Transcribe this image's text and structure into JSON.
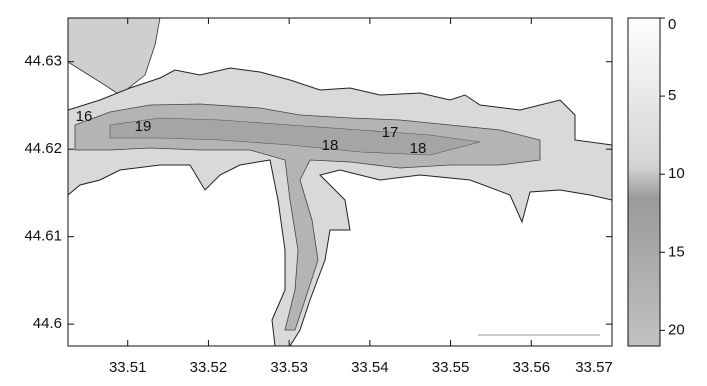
{
  "map": {
    "xlim": [
      33.5026,
      33.57
    ],
    "ylim": [
      44.5975,
      44.635
    ],
    "xticks": [
      33.51,
      33.52,
      33.53,
      33.54,
      33.55,
      33.56,
      33.57
    ],
    "yticks": [
      44.6,
      44.61,
      44.62,
      44.63
    ],
    "contour_labels": [
      16,
      19,
      18,
      17,
      18
    ],
    "colorbar": {
      "lim": [
        0,
        21
      ],
      "ticks": [
        0,
        5,
        10,
        15,
        20
      ]
    }
  }
}
